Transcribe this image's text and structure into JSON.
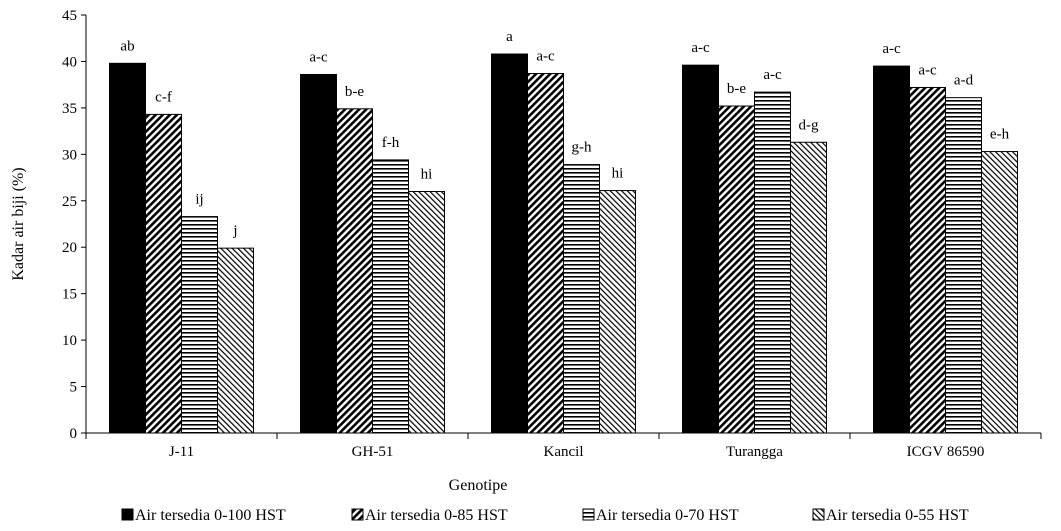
{
  "chart_data": {
    "type": "bar",
    "title": "",
    "xlabel": "Genotipe",
    "ylabel": "Kadar air biji (%)",
    "ylim": [
      0,
      45
    ],
    "yticks": [
      0,
      5,
      10,
      15,
      20,
      25,
      30,
      35,
      40,
      45
    ],
    "grid": false,
    "legend_position": "bottom",
    "categories": [
      "J-11",
      "GH-51",
      "Kancil",
      "Turangga",
      "ICGV 86590"
    ],
    "series": [
      {
        "name": "Air tersedia 0-100 HST",
        "pattern": "solid",
        "values": [
          39.8,
          38.6,
          40.8,
          39.6,
          39.5
        ],
        "labels": [
          "ab",
          "a-c",
          "a",
          "a-c",
          "a-c"
        ]
      },
      {
        "name": "Air tersedia 0-85 HST",
        "pattern": "diagonal-dense",
        "values": [
          34.3,
          34.9,
          38.7,
          35.2,
          37.2
        ],
        "labels": [
          "c-f",
          "b-e",
          "a-c",
          "b-e",
          "a-c"
        ]
      },
      {
        "name": "Air tersedia 0-70 HST",
        "pattern": "horizontal-lines",
        "values": [
          23.3,
          29.4,
          28.9,
          36.7,
          36.1
        ],
        "labels": [
          "ij",
          "f-h",
          "g-h",
          "a-c",
          "a-d"
        ]
      },
      {
        "name": "Air tersedia 0-55 HST",
        "pattern": "diagonal-light",
        "values": [
          19.9,
          26.0,
          26.1,
          31.3,
          30.3
        ],
        "labels": [
          "j",
          "hi",
          "hi",
          "d-g",
          "e-h"
        ]
      }
    ]
  }
}
